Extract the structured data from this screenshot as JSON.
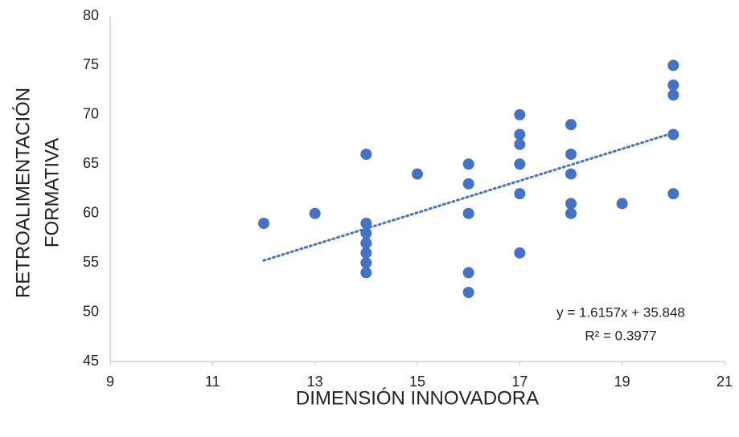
{
  "chart_data": {
    "type": "scatter",
    "x_label": "DIMENSIÓN INNOVADORA",
    "y_label": [
      "RETROALIMENTACIÓN",
      "FORMATIVA"
    ],
    "x": [
      12,
      13,
      14,
      14,
      14,
      14,
      14,
      14,
      14,
      15,
      16,
      16,
      16,
      16,
      16,
      17,
      17,
      17,
      17,
      17,
      17,
      18,
      18,
      18,
      18,
      18,
      19,
      20,
      20,
      20,
      20,
      20
    ],
    "values": [
      59,
      60,
      66,
      59,
      58,
      57,
      56,
      55,
      54,
      64,
      65,
      63,
      60,
      54,
      52,
      70,
      68,
      67,
      65,
      62,
      56,
      69,
      66,
      64,
      61,
      60,
      61,
      75,
      73,
      72,
      68,
      62
    ],
    "color": "#4472c4",
    "xlim": [
      9,
      21
    ],
    "xticks": [
      9,
      11,
      13,
      15,
      17,
      19,
      21
    ],
    "ylim": [
      45,
      80
    ],
    "yticks": [
      45,
      50,
      55,
      60,
      65,
      70,
      75,
      80
    ],
    "grid": false,
    "trendline": {
      "slope": 1.6157,
      "intercept": 35.848,
      "equation": "y = 1.6157x + 35.848",
      "r2": "R² = 0.3977"
    }
  }
}
